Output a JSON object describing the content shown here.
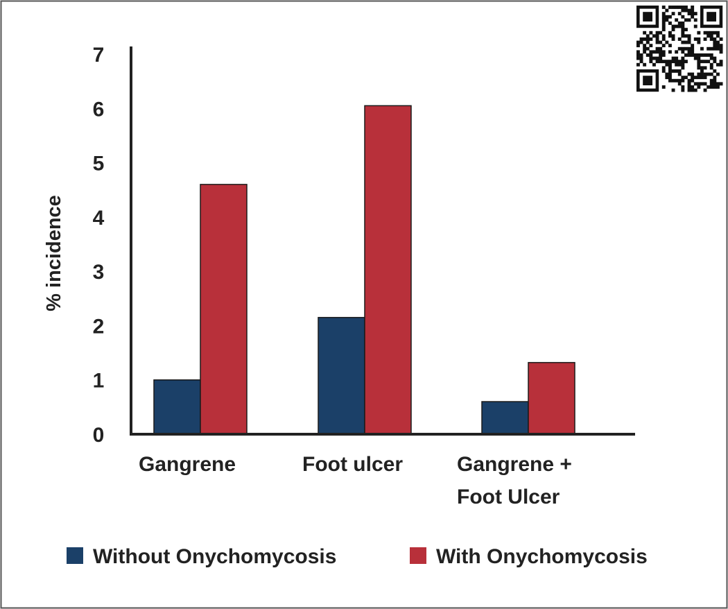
{
  "colors": {
    "without": "#1b4068",
    "with": "#b8303a",
    "axis": "#222222",
    "border": "#555555"
  },
  "qr_code_icon": "qr-code-icon",
  "chart_data": {
    "type": "bar",
    "categories": [
      [
        "Gangrene"
      ],
      [
        "Foot ulcer"
      ],
      [
        "Gangrene +",
        "Foot Ulcer"
      ]
    ],
    "series": [
      {
        "name": "Without Onychomycosis",
        "values": [
          1.0,
          2.15,
          0.6
        ]
      },
      {
        "name": "With Onychomycosis",
        "values": [
          4.6,
          6.05,
          1.32
        ]
      }
    ],
    "ylabel": "% incidence",
    "xlabel": "",
    "ylim": [
      0,
      7
    ],
    "yticks": [
      "0",
      "1",
      "2",
      "3",
      "4",
      "5",
      "6",
      "7"
    ],
    "grid": false,
    "legend": "bottom"
  }
}
